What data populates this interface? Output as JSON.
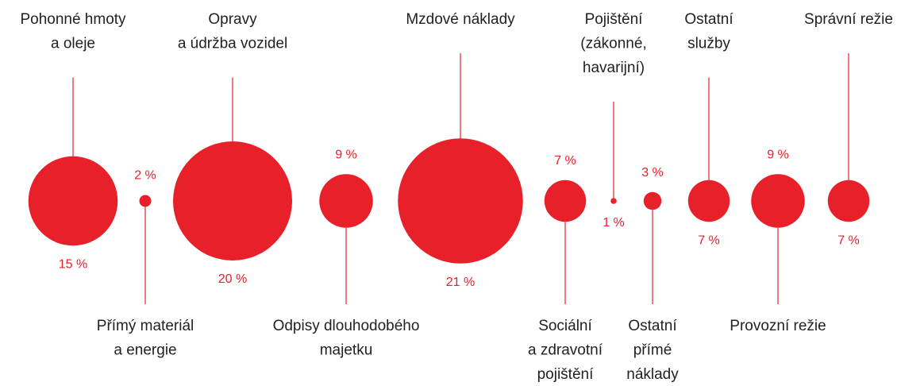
{
  "chart_data": {
    "type": "bubble",
    "categories": [
      "Pohonné hmoty\na oleje",
      "Přímý materiál\na energie",
      "Opravy\na údržba vozidel",
      "Odpisy dlouhodobého\nmajetku",
      "Mzdové náklady",
      "Sociální\na zdravotní\npojištění",
      "Pojištění\n(zákonné,\nhavarijní)",
      "Ostatní\npřímé\nnáklady",
      "Ostatní\nslužby",
      "Provozní režie",
      "Správní režie"
    ],
    "values": [
      15,
      2,
      20,
      9,
      21,
      7,
      1,
      3,
      7,
      9,
      7
    ],
    "value_labels": [
      "15 %",
      "2 %",
      "20 %",
      "9 %",
      "21 %",
      "7 %",
      "1 %",
      "3 %",
      "7 %",
      "9 %",
      "7 %"
    ],
    "color": "#e8202a"
  }
}
